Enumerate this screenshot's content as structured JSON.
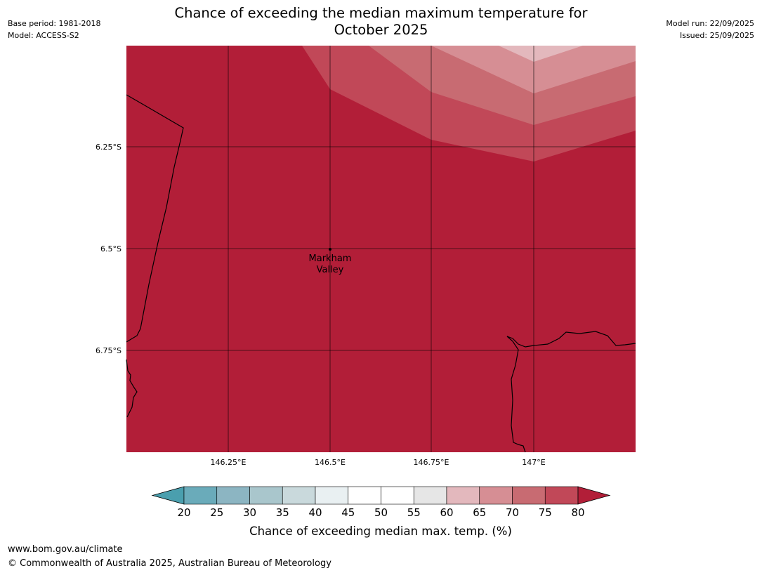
{
  "title": {
    "line1": "Chance of exceeding the median maximum temperature for",
    "line2": "October 2025"
  },
  "meta_left": {
    "base_period": "Base period: 1981-2018",
    "model": "Model: ACCESS-S2"
  },
  "meta_right": {
    "model_run": "Model run: 22/09/2025",
    "issued": "Issued: 25/09/2025"
  },
  "map": {
    "lat_ticks": [
      "6.25°S",
      "6.5°S",
      "6.75°S"
    ],
    "lon_ticks": [
      "146.25°E",
      "146.5°E",
      "146.75°E",
      "147°E"
    ],
    "place_label_line1": "Markham",
    "place_label_line2": "Valley",
    "fill_colors": {
      "band_80_plus": "#b21e38",
      "band_75_80": "#c14858",
      "band_70_75": "#c86b72",
      "band_65_70": "#d68e94",
      "band_60_65": "#e3b8bd"
    }
  },
  "colorbar": {
    "ticks": [
      "20",
      "25",
      "30",
      "35",
      "40",
      "45",
      "50",
      "55",
      "60",
      "65",
      "70",
      "75",
      "80"
    ],
    "label": "Chance of exceeding median max. temp. (%)",
    "colors": [
      "#4a9fae",
      "#6aabba",
      "#8cb5c2",
      "#a9c6cc",
      "#c9d9dc",
      "#e9f0f2",
      "#ffffff",
      "#ffffff",
      "#e6e6e6",
      "#e3b8bd",
      "#d68e94",
      "#c86b72",
      "#c14858",
      "#b21e38"
    ]
  },
  "footer": {
    "url": "www.bom.gov.au/climate",
    "copyright": "© Commonwealth of Australia 2025, Australian Bureau of Meteorology"
  }
}
